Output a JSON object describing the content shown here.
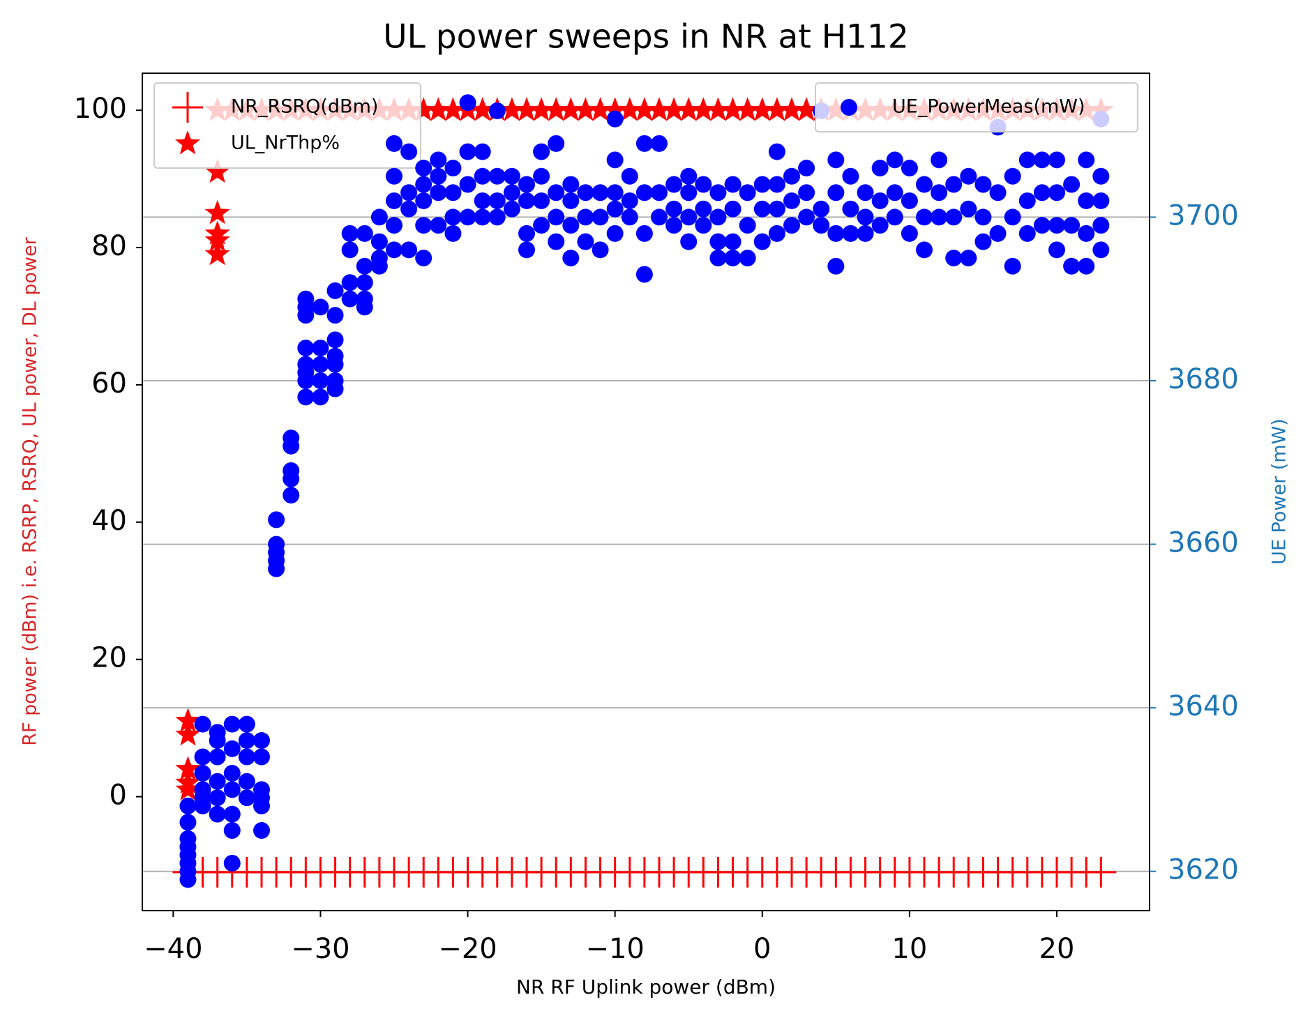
{
  "chart_data": {
    "type": "scatter",
    "title": "UL power sweeps in NR at H112",
    "x_label": "NR RF Uplink power (dBm)",
    "y_label": "RF power (dBm) i.e. RSRP, RSRQ, UL power, DL power",
    "y2_label": "UE Power (mW)",
    "xlim": [
      -42.1,
      26.3
    ],
    "xticks": [
      {
        "value": -40,
        "label": "−40"
      },
      {
        "value": -30,
        "label": "−30"
      },
      {
        "value": -20,
        "label": "−20"
      },
      {
        "value": -10,
        "label": "−10"
      },
      0,
      10,
      20
    ],
    "ylim": [
      -16.6,
      105.4
    ],
    "yticks": [
      0,
      20,
      40,
      60,
      80,
      100
    ],
    "y2lim": [
      3615.2,
      3717.6
    ],
    "y2ticks": [
      3620,
      3640,
      3660,
      3680,
      3700
    ],
    "y2_color": "#1f77b4",
    "y_label_color": "#d62728",
    "grid": "y2",
    "legend_loc": "upper left",
    "legend2_loc": "upper right",
    "series": [
      {
        "name": "NR_RSRQ(dBm)",
        "color": "#ff0000",
        "marker": "plus",
        "x": [
          -39,
          -38,
          -37,
          -36,
          -35,
          -34,
          -33,
          -32,
          -31,
          -30,
          -29,
          -28,
          -27,
          -26,
          -25,
          -24,
          -23,
          -22,
          -21,
          -20,
          -19,
          -18,
          -17,
          -16,
          -15,
          -14,
          -13,
          -12,
          -11,
          -10,
          -9,
          -8,
          -7,
          -6,
          -5,
          -4,
          -3,
          -2,
          -1,
          0,
          1,
          2,
          3,
          4,
          5,
          6,
          7,
          8,
          9,
          10,
          11,
          12,
          13,
          14,
          15,
          16,
          17,
          18,
          19,
          20,
          21,
          22,
          23
        ],
        "values": [
          -11,
          -11,
          -11,
          -11,
          -11,
          -11,
          -11,
          -11,
          -11,
          -11,
          -11,
          -11,
          -11,
          -11,
          -11,
          -11,
          -11,
          -11,
          -11,
          -11,
          -11,
          -11,
          -11,
          -11,
          -11,
          -11,
          -11,
          -11,
          -11,
          -11,
          -11,
          -11,
          -11,
          -11,
          -11,
          -11,
          -11,
          -11,
          -11,
          -11,
          -11,
          -11,
          -11,
          -11,
          -11,
          -11,
          -11,
          -11,
          -11,
          -11,
          -11,
          -11,
          -11,
          -11,
          -11,
          -11,
          -11,
          -11,
          -11,
          -11,
          -11,
          -11,
          -11
        ]
      },
      {
        "name": "UL_NrThp%",
        "color": "#ff0000",
        "marker": "star",
        "x": [
          -39,
          -39,
          -39,
          -39,
          -39,
          -37,
          -37,
          -37,
          -37,
          -37,
          -37,
          -36,
          -35,
          -34,
          -33,
          -32,
          -31,
          -30,
          -29,
          -28,
          -27,
          -26,
          -25,
          -24,
          -23,
          -22,
          -21,
          -20,
          -19,
          -18,
          -17,
          -16,
          -15,
          -14,
          -13,
          -12,
          -11,
          -10,
          -9,
          -8,
          -7,
          -6,
          -5,
          -4,
          -3,
          -2,
          -1,
          0,
          1,
          2,
          3,
          4,
          5,
          6,
          7,
          8,
          9,
          10,
          11,
          12,
          13,
          14,
          15,
          16,
          17,
          18,
          19,
          20,
          21,
          22,
          23
        ],
        "values": [
          11,
          9,
          4,
          2,
          1,
          91,
          85,
          82,
          81,
          79,
          100,
          100,
          100,
          100,
          100,
          100,
          100,
          100,
          100,
          100,
          100,
          100,
          100,
          100,
          100,
          100,
          100,
          100,
          100,
          100,
          100,
          100,
          100,
          100,
          100,
          100,
          100,
          100,
          100,
          100,
          100,
          100,
          100,
          100,
          100,
          100,
          100,
          100,
          100,
          100,
          100,
          100,
          100,
          100,
          100,
          100,
          100,
          100,
          100,
          100,
          100,
          100,
          100,
          100,
          100,
          100,
          100,
          100,
          100,
          100,
          100
        ]
      },
      {
        "name": "UE_PowerMeas(mW)",
        "color": "#0000ff",
        "marker": "circle",
        "axis": "y2",
        "x": [
          -39,
          -39,
          -39,
          -39,
          -39,
          -39,
          -39,
          -39,
          -38,
          -38,
          -38,
          -38,
          -38,
          -38,
          -37,
          -37,
          -37,
          -37,
          -37,
          -37,
          -36,
          -36,
          -36,
          -36,
          -36,
          -36,
          -36,
          -35,
          -35,
          -35,
          -35,
          -35,
          -34,
          -34,
          -34,
          -34,
          -34,
          -34,
          -33,
          -33,
          -33,
          -33,
          -33,
          -32,
          -32,
          -32,
          -32,
          -32,
          -31,
          -31,
          -31,
          -31,
          -31,
          -31,
          -31,
          -31,
          -30,
          -30,
          -30,
          -30,
          -30,
          -29,
          -29,
          -29,
          -29,
          -29,
          -29,
          -29,
          -28,
          -28,
          -28,
          -28,
          -27,
          -27,
          -27,
          -27,
          -27,
          -26,
          -26,
          -26,
          -26,
          -25,
          -25,
          -25,
          -25,
          -25,
          -24,
          -24,
          -24,
          -24,
          -23,
          -23,
          -23,
          -23,
          -23,
          -22,
          -22,
          -22,
          -22,
          -21,
          -21,
          -21,
          -21,
          -20,
          -20,
          -20,
          -20,
          -19,
          -19,
          -19,
          -19,
          -18,
          -18,
          -18,
          -18,
          -17,
          -17,
          -17,
          -16,
          -16,
          -16,
          -16,
          -15,
          -15,
          -15,
          -15,
          -14,
          -14,
          -14,
          -14,
          -13,
          -13,
          -13,
          -13,
          -12,
          -12,
          -12,
          -11,
          -11,
          -11,
          -10,
          -10,
          -10,
          -10,
          -10,
          -9,
          -9,
          -9,
          -8,
          -8,
          -8,
          -8,
          -7,
          -7,
          -7,
          -6,
          -6,
          -6,
          -5,
          -5,
          -5,
          -5,
          -4,
          -4,
          -4,
          -3,
          -3,
          -3,
          -3,
          -2,
          -2,
          -2,
          -2,
          -1,
          -1,
          -1,
          0,
          0,
          0,
          1,
          1,
          1,
          1,
          2,
          2,
          2,
          3,
          3,
          3,
          4,
          4,
          4,
          5,
          5,
          5,
          5,
          6,
          6,
          6,
          7,
          7,
          7,
          8,
          8,
          8,
          9,
          9,
          9,
          10,
          10,
          10,
          11,
          11,
          11,
          12,
          12,
          12,
          13,
          13,
          13,
          14,
          14,
          14,
          15,
          15,
          15,
          16,
          16,
          16,
          17,
          17,
          17,
          18,
          18,
          18,
          19,
          19,
          19,
          20,
          20,
          20,
          20,
          21,
          21,
          21,
          22,
          22,
          22,
          22,
          23,
          23,
          23,
          23,
          23
        ],
        "values": [
          3628,
          3626,
          3624,
          3622,
          3621,
          3620,
          3619,
          3623,
          3638,
          3634,
          3632,
          3630,
          3629,
          3628,
          3637,
          3636,
          3634,
          3631,
          3629,
          3627,
          3638,
          3635,
          3632,
          3630,
          3627,
          3625,
          3621,
          3638,
          3636,
          3634,
          3631,
          3629,
          3636,
          3634,
          3630,
          3629,
          3628,
          3625,
          3663,
          3660,
          3659,
          3658,
          3657,
          3673,
          3672,
          3669,
          3668,
          3666,
          3690,
          3688,
          3684,
          3682,
          3681,
          3680,
          3678,
          3689,
          3689,
          3684,
          3682,
          3680,
          3678,
          3685,
          3683,
          3682,
          3680,
          3679,
          3688,
          3691,
          3698,
          3696,
          3692,
          3690,
          3698,
          3694,
          3690,
          3689,
          3692,
          3700,
          3697,
          3695,
          3694,
          3709,
          3705,
          3702,
          3699,
          3696,
          3708,
          3703,
          3701,
          3696,
          3706,
          3704,
          3702,
          3699,
          3695,
          3707,
          3705,
          3703,
          3699,
          3706,
          3703,
          3700,
          3698,
          3714,
          3708,
          3704,
          3700,
          3708,
          3705,
          3702,
          3700,
          3713,
          3705,
          3702,
          3700,
          3705,
          3703,
          3701,
          3704,
          3702,
          3698,
          3696,
          3708,
          3705,
          3702,
          3699,
          3709,
          3703,
          3700,
          3697,
          3704,
          3702,
          3699,
          3695,
          3703,
          3700,
          3697,
          3703,
          3700,
          3696,
          3712,
          3707,
          3703,
          3701,
          3698,
          3705,
          3702,
          3700,
          3709,
          3703,
          3698,
          3693,
          3709,
          3703,
          3700,
          3704,
          3701,
          3699,
          3705,
          3703,
          3700,
          3697,
          3704,
          3701,
          3699,
          3703,
          3700,
          3697,
          3695,
          3704,
          3701,
          3697,
          3695,
          3703,
          3699,
          3695,
          3704,
          3701,
          3697,
          3708,
          3704,
          3701,
          3698,
          3705,
          3702,
          3699,
          3706,
          3703,
          3700,
          3713,
          3701,
          3699,
          3707,
          3703,
          3698,
          3694,
          3705,
          3701,
          3698,
          3703,
          3700,
          3698,
          3706,
          3702,
          3699,
          3707,
          3703,
          3700,
          3706,
          3702,
          3698,
          3704,
          3700,
          3696,
          3707,
          3703,
          3700,
          3704,
          3700,
          3695,
          3705,
          3701,
          3695,
          3704,
          3700,
          3697,
          3711,
          3703,
          3698,
          3705,
          3700,
          3694,
          3707,
          3702,
          3698,
          3707,
          3703,
          3699,
          3707,
          3703,
          3699,
          3696,
          3704,
          3699,
          3694,
          3707,
          3702,
          3698,
          3694,
          3712,
          3705,
          3702,
          3699,
          3696
        ]
      }
    ]
  }
}
